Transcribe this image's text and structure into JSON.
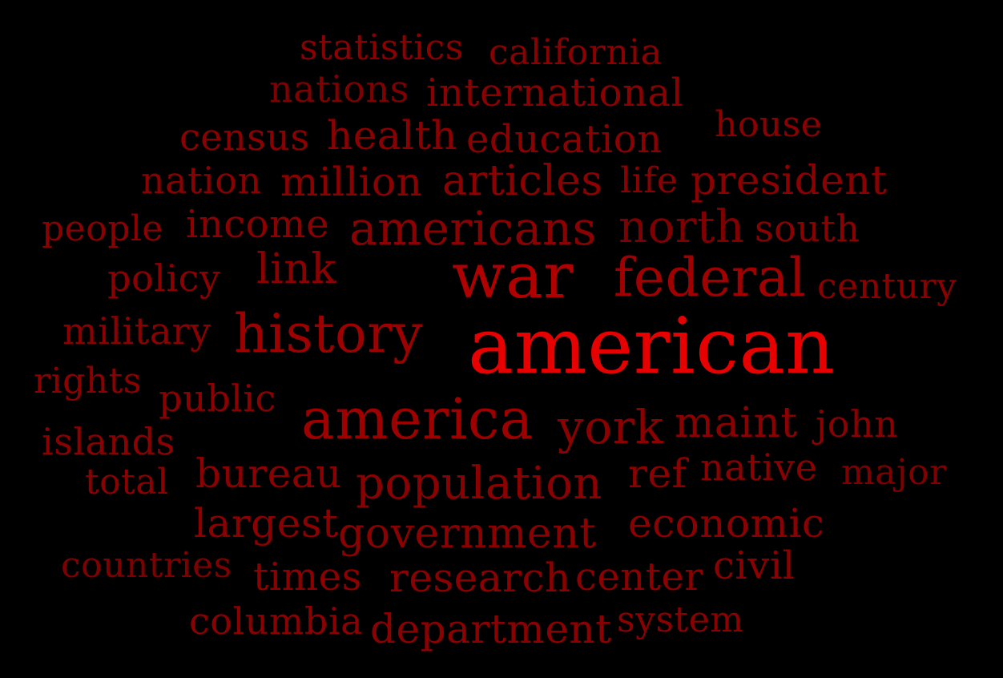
{
  "background_color": "#000000",
  "words": [
    {
      "text": "statistics",
      "color": "#8b0000"
    },
    {
      "text": "california",
      "color": "#8b0000"
    },
    {
      "text": "nations",
      "color": "#7f0000"
    },
    {
      "text": "international",
      "color": "#8b0000"
    },
    {
      "text": "census",
      "color": "#8b0000"
    },
    {
      "text": "health",
      "color": "#8b0000"
    },
    {
      "text": "education",
      "color": "#8b0000"
    },
    {
      "text": "house",
      "color": "#8b0000"
    },
    {
      "text": "nation",
      "color": "#8b0000"
    },
    {
      "text": "million",
      "color": "#8b0000"
    },
    {
      "text": "articles",
      "color": "#8b0000"
    },
    {
      "text": "life",
      "color": "#8b0000"
    },
    {
      "text": "president",
      "color": "#8b0000"
    },
    {
      "text": "people",
      "color": "#8b0000"
    },
    {
      "text": "income",
      "color": "#8b0000"
    },
    {
      "text": "americans",
      "color": "#8b0000"
    },
    {
      "text": "north",
      "color": "#7f0000"
    },
    {
      "text": "south",
      "color": "#8b0000"
    },
    {
      "text": "policy",
      "color": "#8b0000"
    },
    {
      "text": "link",
      "color": "#8b0000"
    },
    {
      "text": "war",
      "color": "#b00000"
    },
    {
      "text": "federal",
      "color": "#a00000"
    },
    {
      "text": "century",
      "color": "#8b0000"
    },
    {
      "text": "military",
      "color": "#8b0000"
    },
    {
      "text": "history",
      "color": "#9e0000"
    },
    {
      "text": "american",
      "color": "#e60000"
    },
    {
      "text": "rights",
      "color": "#8b0000"
    },
    {
      "text": "public",
      "color": "#8b0000"
    },
    {
      "text": "america",
      "color": "#9e0000"
    },
    {
      "text": "york",
      "color": "#8b0000"
    },
    {
      "text": "maint",
      "color": "#8b0000"
    },
    {
      "text": "john",
      "color": "#8b0000"
    },
    {
      "text": "islands",
      "color": "#8b0000"
    },
    {
      "text": "total",
      "color": "#8b0000"
    },
    {
      "text": "bureau",
      "color": "#8b0000"
    },
    {
      "text": "population",
      "color": "#8b0000"
    },
    {
      "text": "ref",
      "color": "#8b0000"
    },
    {
      "text": "native",
      "color": "#8b0000"
    },
    {
      "text": "major",
      "color": "#7f0000"
    },
    {
      "text": "largest",
      "color": "#8b0000"
    },
    {
      "text": "government",
      "color": "#8b0000"
    },
    {
      "text": "economic",
      "color": "#8b0000"
    },
    {
      "text": "countries",
      "color": "#7f0000"
    },
    {
      "text": "times",
      "color": "#8b0000"
    },
    {
      "text": "research",
      "color": "#8b0000"
    },
    {
      "text": "center",
      "color": "#8b0000"
    },
    {
      "text": "civil",
      "color": "#8b0000"
    },
    {
      "text": "columbia",
      "color": "#8b0000"
    },
    {
      "text": "department",
      "color": "#8b0000"
    },
    {
      "text": "system",
      "color": "#8b0000"
    }
  ]
}
